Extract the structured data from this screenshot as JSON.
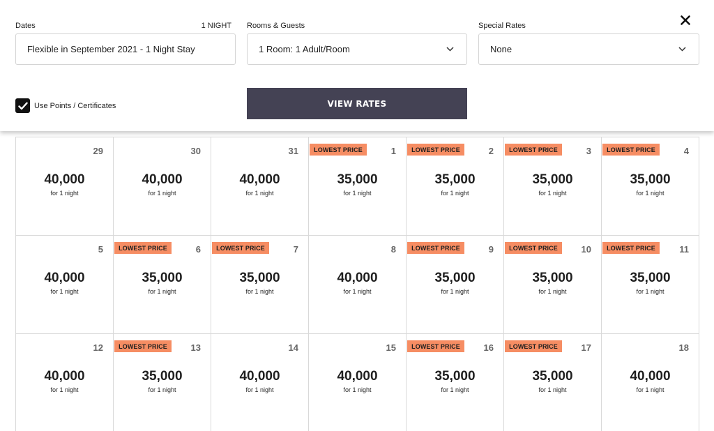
{
  "search": {
    "dates_label": "Dates",
    "night_count": "1 NIGHT",
    "dates_value": "Flexible in September 2021 - 1 Night Stay",
    "rooms_label": "Rooms & Guests",
    "rooms_value": "1 Room: 1 Adult/Room",
    "special_label": "Special Rates",
    "special_value": "None",
    "points_label": "Use Points / Certificates",
    "points_checked": true,
    "view_rates_label": "VIEW RATES"
  },
  "icons": {
    "close": "close-icon",
    "dropdown": "chevron-down-icon",
    "check": "checkmark-icon"
  },
  "colors": {
    "badge": "#f68d63",
    "button": "#444254",
    "checkbox": "#111111"
  },
  "calendar": {
    "days": [
      {
        "day": "29",
        "price": "40,000",
        "note": "for 1 night"
      },
      {
        "day": "30",
        "price": "40,000",
        "note": "for 1 night"
      },
      {
        "day": "31",
        "price": "40,000",
        "note": "for 1 night"
      },
      {
        "day": "1",
        "price": "35,000",
        "note": "for 1 night",
        "badge": "LOWEST PRICE"
      },
      {
        "day": "2",
        "price": "35,000",
        "note": "for 1 night",
        "badge": "LOWEST PRICE"
      },
      {
        "day": "3",
        "price": "35,000",
        "note": "for 1 night",
        "badge": "LOWEST PRICE"
      },
      {
        "day": "4",
        "price": "35,000",
        "note": "for 1 night",
        "badge": "LOWEST PRICE"
      },
      {
        "day": "5",
        "price": "40,000",
        "note": "for 1 night"
      },
      {
        "day": "6",
        "price": "35,000",
        "note": "for 1 night",
        "badge": "LOWEST PRICE"
      },
      {
        "day": "7",
        "price": "35,000",
        "note": "for 1 night",
        "badge": "LOWEST PRICE"
      },
      {
        "day": "8",
        "price": "40,000",
        "note": "for 1 night"
      },
      {
        "day": "9",
        "price": "35,000",
        "note": "for 1 night",
        "badge": "LOWEST PRICE"
      },
      {
        "day": "10",
        "price": "35,000",
        "note": "for 1 night",
        "badge": "LOWEST PRICE"
      },
      {
        "day": "11",
        "price": "35,000",
        "note": "for 1 night",
        "badge": "LOWEST PRICE"
      },
      {
        "day": "12",
        "price": "40,000",
        "note": "for 1 night"
      },
      {
        "day": "13",
        "price": "35,000",
        "note": "for 1 night",
        "badge": "LOWEST PRICE"
      },
      {
        "day": "14",
        "price": "40,000",
        "note": "for 1 night"
      },
      {
        "day": "15",
        "price": "40,000",
        "note": "for 1 night"
      },
      {
        "day": "16",
        "price": "35,000",
        "note": "for 1 night",
        "badge": "LOWEST PRICE"
      },
      {
        "day": "17",
        "price": "35,000",
        "note": "for 1 night",
        "badge": "LOWEST PRICE"
      },
      {
        "day": "18",
        "price": "40,000",
        "note": "for 1 night"
      }
    ]
  }
}
